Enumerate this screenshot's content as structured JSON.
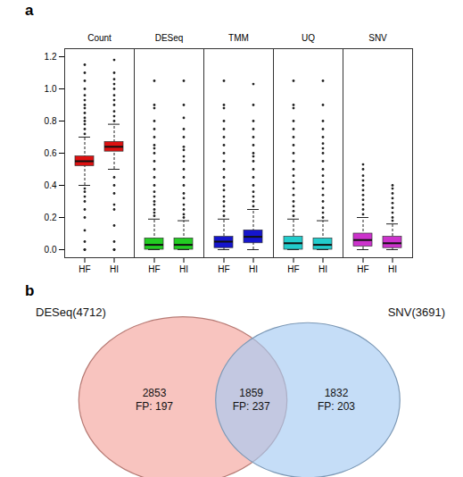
{
  "chart_data": [
    {
      "type": "box",
      "panel": "a",
      "ylim": [
        -0.05,
        1.25
      ],
      "yticks": [
        {
          "value": 0,
          "label": "0.0"
        },
        {
          "value": 0.2,
          "label": "0.2"
        },
        {
          "value": 0.4,
          "label": "0.4"
        },
        {
          "value": 0.6,
          "label": "0.6"
        },
        {
          "value": 0.8,
          "label": "0.8"
        },
        {
          "value": 1,
          "label": "1.0"
        },
        {
          "value": 1.2,
          "label": "1.2"
        }
      ],
      "groups": [
        "Count",
        "DESeq",
        "TMM",
        "UQ",
        "SNV"
      ],
      "boxes": [
        {
          "group": "Count",
          "name": "HF",
          "color": "#dd1111",
          "q1": 0.52,
          "median": 0.55,
          "q3": 0.58,
          "whisker_low": 0.4,
          "whisker_high": 0.7,
          "outliers": [
            0.0,
            0.0,
            0.05,
            0.12,
            0.2,
            0.25,
            0.3,
            0.33,
            0.36,
            0.38,
            0.72,
            0.75,
            0.78,
            0.8,
            0.82,
            0.85,
            0.88,
            0.9,
            0.93,
            0.96,
            1.0,
            1.05,
            1.1,
            1.15
          ]
        },
        {
          "group": "Count",
          "name": "HI",
          "color": "#dd1111",
          "q1": 0.61,
          "median": 0.64,
          "q3": 0.67,
          "whisker_low": 0.5,
          "whisker_high": 0.78,
          "outliers": [
            0.0,
            0.0,
            0.05,
            0.15,
            0.25,
            0.28,
            0.35,
            0.4,
            0.45,
            0.8,
            0.83,
            0.86,
            0.9,
            0.93,
            0.96,
            1.0,
            1.03,
            1.06,
            1.1,
            1.18
          ]
        },
        {
          "group": "DESeq",
          "name": "HF",
          "color": "#22cc22",
          "q1": 0.0,
          "median": 0.03,
          "q3": 0.07,
          "whisker_low": 0.0,
          "whisker_high": 0.19,
          "outliers": [
            0.21,
            0.23,
            0.25,
            0.28,
            0.3,
            0.33,
            0.36,
            0.4,
            0.45,
            0.5,
            0.55,
            0.6,
            0.63,
            0.65,
            0.7,
            0.75,
            0.8,
            0.88,
            0.9,
            1.05
          ]
        },
        {
          "group": "DESeq",
          "name": "HI",
          "color": "#22cc22",
          "q1": 0.0,
          "median": 0.03,
          "q3": 0.07,
          "whisker_low": 0.0,
          "whisker_high": 0.18,
          "outliers": [
            0.2,
            0.22,
            0.25,
            0.28,
            0.32,
            0.35,
            0.4,
            0.45,
            0.5,
            0.55,
            0.58,
            0.62,
            0.64,
            0.7,
            0.75,
            0.82,
            0.9,
            1.05
          ]
        },
        {
          "group": "TMM",
          "name": "HF",
          "color": "#1515cc",
          "q1": 0.01,
          "median": 0.05,
          "q3": 0.08,
          "whisker_low": 0.0,
          "whisker_high": 0.19,
          "outliers": [
            0.21,
            0.24,
            0.27,
            0.3,
            0.33,
            0.37,
            0.4,
            0.45,
            0.5,
            0.55,
            0.6,
            0.65,
            0.7,
            0.75,
            0.8,
            0.88,
            0.9,
            1.05
          ]
        },
        {
          "group": "TMM",
          "name": "HI",
          "color": "#1515cc",
          "q1": 0.04,
          "median": 0.08,
          "q3": 0.12,
          "whisker_low": 0.0,
          "whisker_high": 0.25,
          "outliers": [
            0.27,
            0.3,
            0.33,
            0.36,
            0.4,
            0.45,
            0.5,
            0.55,
            0.58,
            0.6,
            0.65,
            0.7,
            0.75,
            0.8,
            0.9,
            1.03
          ]
        },
        {
          "group": "UQ",
          "name": "HF",
          "color": "#22cccc",
          "q1": 0.0,
          "median": 0.04,
          "q3": 0.08,
          "whisker_low": 0.0,
          "whisker_high": 0.19,
          "outliers": [
            0.21,
            0.24,
            0.27,
            0.3,
            0.34,
            0.38,
            0.42,
            0.46,
            0.5,
            0.55,
            0.6,
            0.65,
            0.7,
            0.75,
            0.8,
            0.88,
            0.9,
            1.05
          ]
        },
        {
          "group": "UQ",
          "name": "HI",
          "color": "#22cccc",
          "q1": 0.0,
          "median": 0.03,
          "q3": 0.07,
          "whisker_low": 0.0,
          "whisker_high": 0.18,
          "outliers": [
            0.2,
            0.23,
            0.26,
            0.3,
            0.34,
            0.38,
            0.42,
            0.46,
            0.5,
            0.55,
            0.6,
            0.63,
            0.66,
            0.7,
            0.75,
            0.8,
            0.9,
            1.05
          ]
        },
        {
          "group": "SNV",
          "name": "HF",
          "color": "#cc33cc",
          "q1": 0.02,
          "median": 0.06,
          "q3": 0.1,
          "whisker_low": 0.0,
          "whisker_high": 0.2,
          "outliers": [
            0.22,
            0.25,
            0.28,
            0.31,
            0.34,
            0.37,
            0.4,
            0.43,
            0.46,
            0.5,
            0.53
          ]
        },
        {
          "group": "SNV",
          "name": "HI",
          "color": "#cc33cc",
          "q1": 0.01,
          "median": 0.04,
          "q3": 0.08,
          "whisker_low": 0.0,
          "whisker_high": 0.16,
          "outliers": [
            0.18,
            0.2,
            0.23,
            0.26,
            0.29,
            0.32,
            0.35,
            0.38,
            0.4
          ]
        }
      ]
    },
    {
      "type": "venn",
      "panel": "b",
      "sets": [
        {
          "name": "DESeq",
          "label": "DESeq(4712)",
          "size": 4712,
          "color": "#f4a49c"
        },
        {
          "name": "SNV",
          "label": "SNV(3691)",
          "size": 3691,
          "color": "#a6cbf2"
        }
      ],
      "regions": [
        {
          "sets": [
            "DESeq"
          ],
          "count": 2853,
          "fp_label": "FP: 197"
        },
        {
          "sets": [
            "DESeq",
            "SNV"
          ],
          "count": 1859,
          "fp_label": "FP: 237"
        },
        {
          "sets": [
            "SNV"
          ],
          "count": 1832,
          "fp_label": "FP: 203"
        }
      ]
    }
  ]
}
